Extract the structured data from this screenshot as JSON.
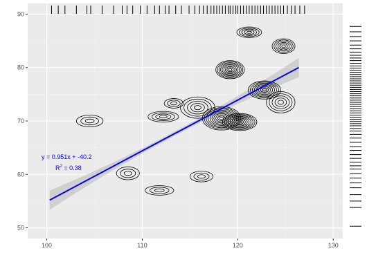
{
  "chart_data": {
    "type": "scatter",
    "title": "",
    "xlabel": "",
    "ylabel": "",
    "xlim": [
      98,
      131
    ],
    "ylim": [
      48,
      92
    ],
    "x_ticks": [
      100,
      110,
      120,
      130
    ],
    "y_ticks": [
      50,
      60,
      70,
      80,
      90
    ],
    "grid": true,
    "panel_background": "#ebebeb",
    "contour_color": "#000000",
    "fit_color": "#0000ff",
    "fit_band_color": "#bdbdbd",
    "regression": {
      "slope": 0.951,
      "intercept": -40.2,
      "x_range": [
        100.3,
        126.4
      ]
    },
    "annotation_equation": "y = 0.951x + -40.2",
    "annotation_r2_label": "R",
    "annotation_r2_sup": "2",
    "annotation_r2_value": " = 0.38",
    "density_peaks": [
      {
        "x": 104.5,
        "y": 70.0,
        "sx": 1.4,
        "sy": 1.1,
        "levels": 3
      },
      {
        "x": 108.5,
        "y": 60.2,
        "sx": 1.2,
        "sy": 1.2,
        "levels": 3
      },
      {
        "x": 111.8,
        "y": 57.0,
        "sx": 1.5,
        "sy": 0.9,
        "levels": 3
      },
      {
        "x": 116.2,
        "y": 59.6,
        "sx": 1.2,
        "sy": 1.0,
        "levels": 3
      },
      {
        "x": 112.2,
        "y": 70.8,
        "sx": 1.6,
        "sy": 1.0,
        "levels": 4
      },
      {
        "x": 113.3,
        "y": 73.3,
        "sx": 1.0,
        "sy": 0.9,
        "levels": 3
      },
      {
        "x": 115.8,
        "y": 72.5,
        "sx": 1.8,
        "sy": 2.0,
        "levels": 5
      },
      {
        "x": 118.3,
        "y": 70.5,
        "sx": 2.0,
        "sy": 2.2,
        "levels": 10
      },
      {
        "x": 120.2,
        "y": 69.8,
        "sx": 1.8,
        "sy": 1.6,
        "levels": 9
      },
      {
        "x": 119.2,
        "y": 79.6,
        "sx": 1.5,
        "sy": 1.7,
        "levels": 9
      },
      {
        "x": 122.8,
        "y": 75.8,
        "sx": 1.7,
        "sy": 1.7,
        "levels": 8
      },
      {
        "x": 121.2,
        "y": 86.6,
        "sx": 1.3,
        "sy": 1.0,
        "levels": 5
      },
      {
        "x": 124.8,
        "y": 84.0,
        "sx": 1.2,
        "sy": 1.4,
        "levels": 6
      },
      {
        "x": 124.5,
        "y": 73.5,
        "sx": 1.5,
        "sy": 2.0,
        "levels": 5
      }
    ],
    "rug_x": [
      100.5,
      101.2,
      101.9,
      103.1,
      104.2,
      104.6,
      105.8,
      107.0,
      107.9,
      108.4,
      109.0,
      109.8,
      110.5,
      111.3,
      111.8,
      112.4,
      112.8,
      113.5,
      114.1,
      114.9,
      115.5,
      116.0,
      116.4,
      116.8,
      117.2,
      117.5,
      117.8,
      118.1,
      118.4,
      118.7,
      119.0,
      119.2,
      119.5,
      119.8,
      120.0,
      120.3,
      120.6,
      120.9,
      121.2,
      121.5,
      121.8,
      122.1,
      122.4,
      122.7,
      123.0,
      123.3,
      123.6,
      123.9,
      124.2,
      124.5,
      124.8,
      125.2,
      125.6,
      126.0,
      126.5,
      127.0
    ],
    "rug_y": [
      50.3,
      53.8,
      55.0,
      56.2,
      57.5,
      58.4,
      59.3,
      60.1,
      61.0,
      61.6,
      62.3,
      63.0,
      63.7,
      64.5,
      65.2,
      66.0,
      66.8,
      67.5,
      68.1,
      68.6,
      69.1,
      69.5,
      69.9,
      70.3,
      70.7,
      71.1,
      71.5,
      71.9,
      72.3,
      72.7,
      73.1,
      73.5,
      73.9,
      74.3,
      74.7,
      75.1,
      75.5,
      75.9,
      76.3,
      76.7,
      77.1,
      77.5,
      77.9,
      78.3,
      78.7,
      79.1,
      79.5,
      79.9,
      80.3,
      80.8,
      81.3,
      81.8,
      82.3,
      82.9,
      83.5,
      84.2,
      85.0,
      85.8,
      86.7,
      87.7
    ]
  }
}
